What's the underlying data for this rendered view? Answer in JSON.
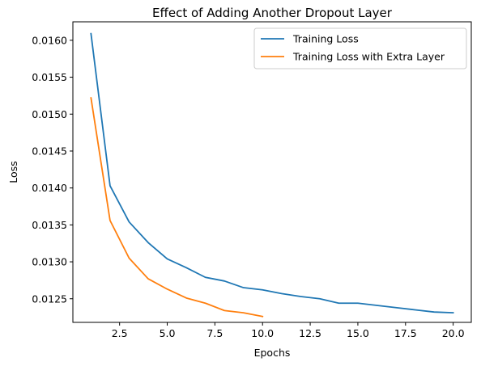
{
  "chart_data": {
    "type": "line",
    "title": "Effect of Adding Another Dropout Layer",
    "xlabel": "Epochs",
    "ylabel": "Loss",
    "xlim": [
      0.05,
      20.95
    ],
    "ylim": [
      0.01218,
      0.01625
    ],
    "xticks": [
      2.5,
      5.0,
      7.5,
      10.0,
      12.5,
      15.0,
      17.5,
      20.0
    ],
    "xtick_labels": [
      "2.5",
      "5.0",
      "7.5",
      "10.0",
      "12.5",
      "15.0",
      "17.5",
      "20.0"
    ],
    "yticks": [
      0.0125,
      0.013,
      0.0135,
      0.014,
      0.0145,
      0.015,
      0.0155,
      0.016
    ],
    "ytick_labels": [
      "0.0125",
      "0.0130",
      "0.0135",
      "0.0140",
      "0.0145",
      "0.0150",
      "0.0155",
      "0.0160"
    ],
    "grid": false,
    "legend_position": "top-right",
    "series": [
      {
        "name": "Training Loss",
        "color": "#1f77b4",
        "x": [
          1,
          2,
          3,
          4,
          5,
          6,
          7,
          8,
          9,
          10,
          11,
          12,
          13,
          14,
          15,
          16,
          17,
          18,
          19,
          20
        ],
        "values": [
          0.01609,
          0.01403,
          0.01354,
          0.01326,
          0.01304,
          0.01292,
          0.01279,
          0.01274,
          0.01265,
          0.01262,
          0.01257,
          0.01253,
          0.0125,
          0.01244,
          0.01244,
          0.01241,
          0.01238,
          0.01235,
          0.01232,
          0.01231
        ]
      },
      {
        "name": "Training Loss with Extra Layer",
        "color": "#ff7f0e",
        "x": [
          1,
          2,
          3,
          4,
          5,
          6,
          7,
          8,
          9,
          10
        ],
        "values": [
          0.01522,
          0.01356,
          0.01305,
          0.01277,
          0.01263,
          0.01251,
          0.01244,
          0.01234,
          0.01231,
          0.01226
        ]
      }
    ]
  }
}
